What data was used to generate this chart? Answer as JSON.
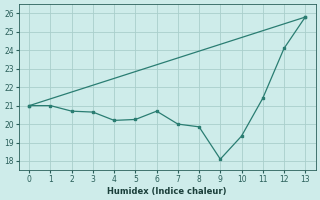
{
  "xlabel": "Humidex (Indice chaleur)",
  "x": [
    0,
    1,
    2,
    3,
    4,
    5,
    6,
    7,
    8,
    9,
    10,
    11,
    12,
    13
  ],
  "line1_y": [
    21.0,
    21.0,
    20.7,
    20.65,
    20.2,
    20.25,
    20.7,
    20.0,
    19.85,
    18.1,
    19.35,
    21.4,
    24.1,
    25.8
  ],
  "line2_x": [
    0,
    13
  ],
  "line2_y": [
    21.0,
    25.8
  ],
  "line_color": "#2a7d72",
  "bg_color": "#ceecea",
  "grid_color": "#aacfcc",
  "xlim": [
    -0.5,
    13.5
  ],
  "ylim": [
    17.5,
    26.5
  ],
  "yticks": [
    18,
    19,
    20,
    21,
    22,
    23,
    24,
    25,
    26
  ],
  "xticks": [
    0,
    1,
    2,
    3,
    4,
    5,
    6,
    7,
    8,
    9,
    10,
    11,
    12,
    13
  ]
}
